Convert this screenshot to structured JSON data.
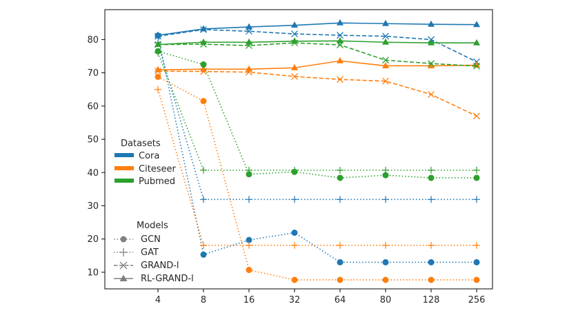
{
  "chart_data": {
    "type": "line",
    "title": "",
    "xlabel": "",
    "ylabel": "",
    "x": [
      "4",
      "8",
      "16",
      "32",
      "64",
      "80",
      "128",
      "256"
    ],
    "yticks": [
      10,
      20,
      30,
      40,
      50,
      60,
      70,
      80
    ],
    "ylim": [
      5,
      89
    ],
    "grid": false,
    "colors": {
      "Cora": "#1f77b4",
      "Citeseer": "#ff7f0e",
      "Pubmed": "#2ca02c"
    },
    "legend_datasets": {
      "title": "Datasets",
      "placement": "center-left",
      "entries": [
        "Cora",
        "Citeseer",
        "Pubmed"
      ]
    },
    "legend_models": {
      "title": "Models",
      "placement": "lower-left",
      "entries": [
        {
          "label": "GCN",
          "style": "dotted",
          "marker": "circle"
        },
        {
          "label": "GAT",
          "style": "dotted",
          "marker": "plus"
        },
        {
          "label": "GRAND-l",
          "style": "dashed",
          "marker": "x"
        },
        {
          "label": "RL-GRAND-l",
          "style": "solid",
          "marker": "triangle"
        }
      ]
    },
    "series": [
      {
        "dataset": "Cora",
        "model": "GCN",
        "values": [
          81.2,
          15.3,
          19.7,
          21.9,
          13.0,
          13.0,
          13.0,
          13.0
        ]
      },
      {
        "dataset": "Cora",
        "model": "GAT",
        "values": [
          79.0,
          31.9,
          31.9,
          31.9,
          31.9,
          31.9,
          31.9,
          31.9
        ]
      },
      {
        "dataset": "Cora",
        "model": "GRAND-l",
        "values": [
          81.0,
          83.0,
          82.5,
          81.7,
          81.3,
          81.0,
          80.0,
          73.3
        ]
      },
      {
        "dataset": "Cora",
        "model": "RL-GRAND-l",
        "values": [
          81.3,
          83.2,
          83.8,
          84.3,
          85.0,
          84.8,
          84.6,
          84.5
        ]
      },
      {
        "dataset": "Citeseer",
        "model": "GCN",
        "values": [
          68.8,
          61.5,
          10.7,
          7.7,
          7.7,
          7.7,
          7.7,
          7.7
        ]
      },
      {
        "dataset": "Citeseer",
        "model": "GAT",
        "values": [
          65.0,
          18.1,
          18.1,
          18.1,
          18.1,
          18.1,
          18.1,
          18.1
        ]
      },
      {
        "dataset": "Citeseer",
        "model": "GRAND-l",
        "values": [
          70.5,
          70.4,
          70.2,
          68.9,
          68.0,
          67.5,
          63.5,
          57.0
        ]
      },
      {
        "dataset": "Citeseer",
        "model": "RL-GRAND-l",
        "values": [
          70.9,
          71.1,
          71.1,
          71.5,
          73.6,
          72.1,
          72.1,
          72.3
        ]
      },
      {
        "dataset": "Pubmed",
        "model": "GCN",
        "values": [
          76.5,
          72.5,
          39.5,
          40.2,
          38.4,
          39.2,
          38.4,
          38.4
        ]
      },
      {
        "dataset": "Pubmed",
        "model": "GAT",
        "values": [
          76.0,
          40.7,
          40.7,
          40.7,
          40.7,
          40.7,
          40.7,
          40.7
        ]
      },
      {
        "dataset": "Pubmed",
        "model": "GRAND-l",
        "values": [
          78.5,
          78.6,
          78.2,
          79.0,
          78.4,
          73.8,
          72.8,
          72.0
        ]
      },
      {
        "dataset": "Pubmed",
        "model": "RL-GRAND-l",
        "values": [
          78.5,
          79.2,
          79.2,
          79.5,
          79.6,
          79.2,
          79.0,
          79.0
        ]
      }
    ]
  }
}
